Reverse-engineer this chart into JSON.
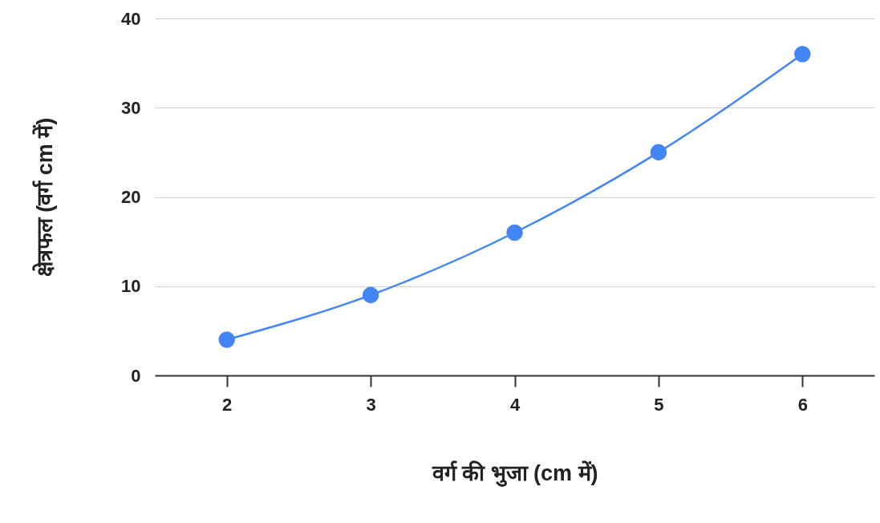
{
  "chart_data": {
    "type": "line",
    "xlabel": "वर्ग की भुजा (cm में)",
    "ylabel": "क्षेत्रफल (वर्ग cm में)",
    "x": [
      2,
      3,
      4,
      5,
      6
    ],
    "series": [
      {
        "color": "#4285f4",
        "values": [
          4,
          9,
          16,
          25,
          36
        ]
      }
    ],
    "xlim": [
      1.5,
      6.5
    ],
    "xticks": [
      2,
      3,
      4,
      5,
      6
    ],
    "ylim": [
      0,
      40
    ],
    "yticks": [
      0,
      10,
      20,
      30,
      40
    ],
    "grid": "y",
    "marker": "circle",
    "line_style": "solid"
  }
}
